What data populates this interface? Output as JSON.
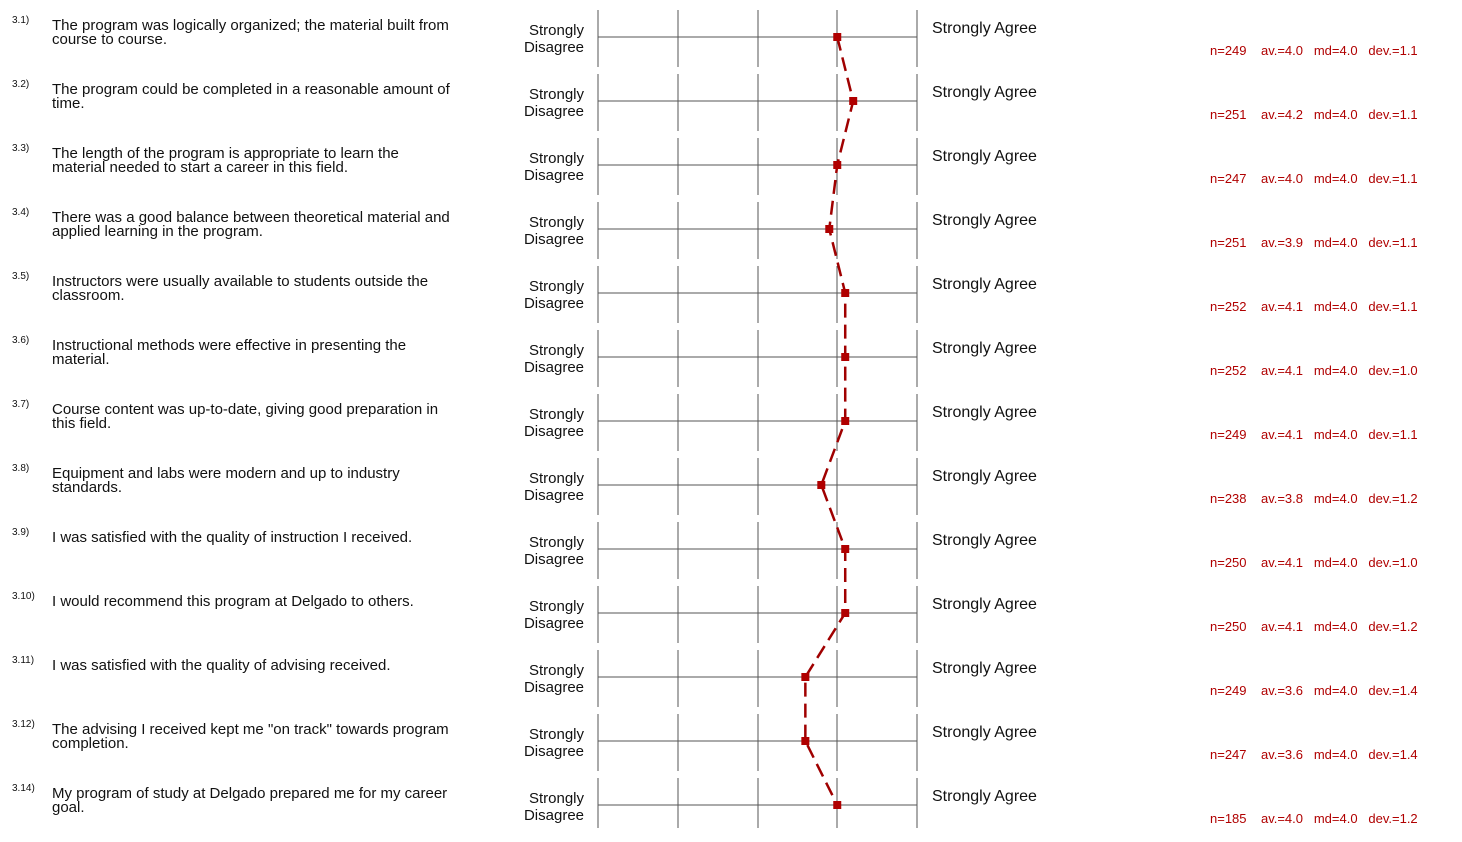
{
  "chart_data": {
    "type": "line",
    "scale_left_label": "Strongly Disagree",
    "scale_right_label": "Strongly Agree",
    "scale_range": [
      1,
      5
    ],
    "colors": {
      "line": "#a00000",
      "marker": "#b00000",
      "axis": "#555555"
    },
    "items": [
      {
        "id": "3.1)",
        "question": "The program was logically organized; the material built from course to course.",
        "n": 249,
        "av": 4.0,
        "md": 4.0,
        "dev": 1.1
      },
      {
        "id": "3.2)",
        "question": "The program could be completed in a reasonable amount of time.",
        "n": 251,
        "av": 4.2,
        "md": 4.0,
        "dev": 1.1
      },
      {
        "id": "3.3)",
        "question": "The length of the program is appropriate to learn the material needed to start a career in this field.",
        "n": 247,
        "av": 4.0,
        "md": 4.0,
        "dev": 1.1
      },
      {
        "id": "3.4)",
        "question": "There was a good balance between theoretical material and applied learning in the program.",
        "n": 251,
        "av": 3.9,
        "md": 4.0,
        "dev": 1.1
      },
      {
        "id": "3.5)",
        "question": "Instructors were usually available to students outside the classroom.",
        "n": 252,
        "av": 4.1,
        "md": 4.0,
        "dev": 1.1
      },
      {
        "id": "3.6)",
        "question": "Instructional methods were effective in presenting the material.",
        "n": 252,
        "av": 4.1,
        "md": 4.0,
        "dev": 1.0
      },
      {
        "id": "3.7)",
        "question": "Course content was up-to-date, giving good preparation in this field.",
        "n": 249,
        "av": 4.1,
        "md": 4.0,
        "dev": 1.1
      },
      {
        "id": "3.8)",
        "question": "Equipment and labs were modern and up to industry standards.",
        "n": 238,
        "av": 3.8,
        "md": 4.0,
        "dev": 1.2
      },
      {
        "id": "3.9)",
        "question": "I was satisfied with the quality of instruction I received.",
        "n": 250,
        "av": 4.1,
        "md": 4.0,
        "dev": 1.0
      },
      {
        "id": "3.10)",
        "question": "I would recommend this program at Delgado to others.",
        "n": 250,
        "av": 4.1,
        "md": 4.0,
        "dev": 1.2
      },
      {
        "id": "3.11)",
        "question": "I was satisfied with the quality of advising received.",
        "n": 249,
        "av": 3.6,
        "md": 4.0,
        "dev": 1.4
      },
      {
        "id": "3.12)",
        "question": "The advising I received kept me \"on track\" towards program completion.",
        "n": 247,
        "av": 3.6,
        "md": 4.0,
        "dev": 1.4
      },
      {
        "id": "3.14)",
        "question": "My program of study at Delgado prepared me for my career goal.",
        "n": 185,
        "av": 4.0,
        "md": 4.0,
        "dev": 1.2
      }
    ]
  }
}
